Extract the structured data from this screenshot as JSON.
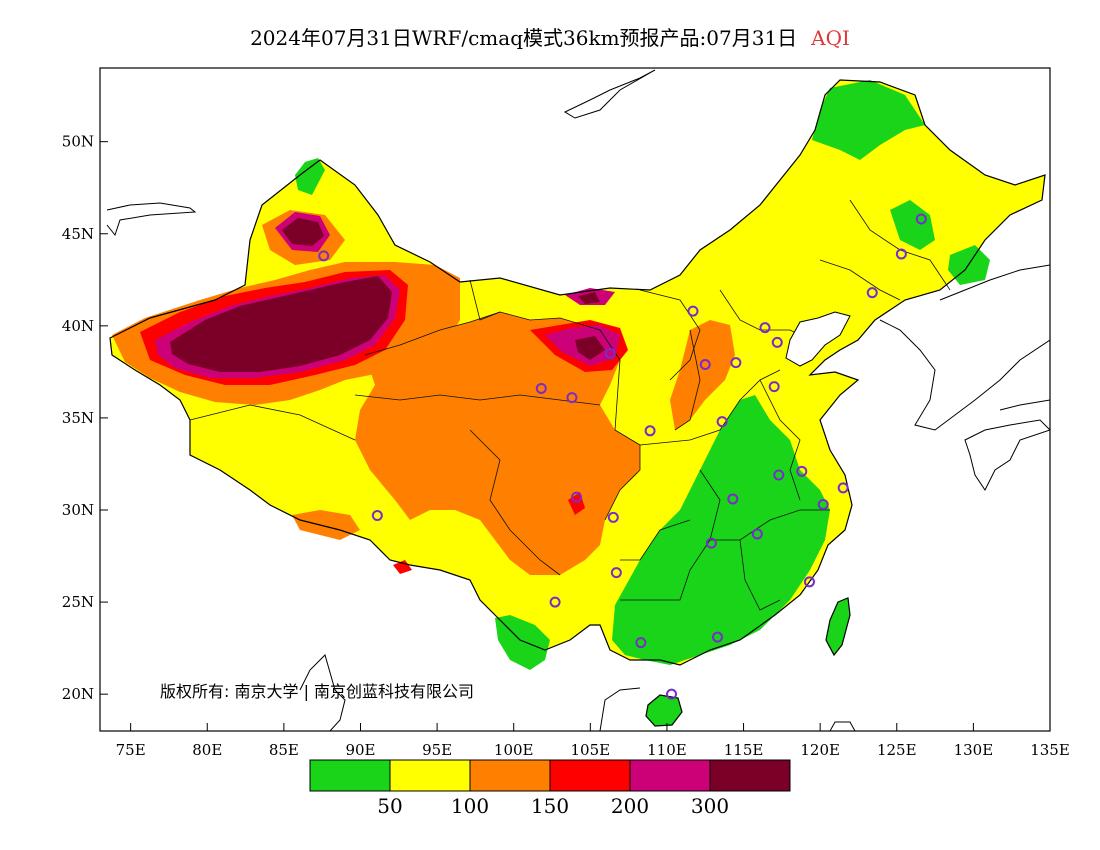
{
  "header": {
    "title": "2024年07月31日WRF/cmaq模式36km预报产品:07月31日",
    "variable": "AQI"
  },
  "map": {
    "lon_range": [
      73,
      135
    ],
    "lat_range": [
      18,
      54
    ],
    "x_ticks": [
      {
        "lon": 75,
        "label": "75E"
      },
      {
        "lon": 80,
        "label": "80E"
      },
      {
        "lon": 85,
        "label": "85E"
      },
      {
        "lon": 90,
        "label": "90E"
      },
      {
        "lon": 95,
        "label": "95E"
      },
      {
        "lon": 100,
        "label": "100E"
      },
      {
        "lon": 105,
        "label": "105E"
      },
      {
        "lon": 110,
        "label": "110E"
      },
      {
        "lon": 115,
        "label": "115E"
      },
      {
        "lon": 120,
        "label": "120E"
      },
      {
        "lon": 125,
        "label": "125E"
      },
      {
        "lon": 130,
        "label": "130E"
      },
      {
        "lon": 135,
        "label": "135E"
      }
    ],
    "y_ticks": [
      {
        "lat": 20,
        "label": "20N"
      },
      {
        "lat": 25,
        "label": "25N"
      },
      {
        "lat": 30,
        "label": "30N"
      },
      {
        "lat": 35,
        "label": "35N"
      },
      {
        "lat": 40,
        "label": "40N"
      },
      {
        "lat": 45,
        "label": "45N"
      },
      {
        "lat": 50,
        "label": "50N"
      }
    ],
    "copyright": "版权所有: 南京大学 | 南京创蓝科技有限公司",
    "colors": {
      "good": "#19d419",
      "moderate": "#ffff00",
      "usg": "#ff8000",
      "unhealthy": "#ff0000",
      "very_unhealthy": "#cc0077",
      "hazardous": "#7a0027"
    },
    "stations": [
      [
        87.6,
        43.8
      ],
      [
        91.1,
        29.7
      ],
      [
        101.8,
        36.6
      ],
      [
        103.8,
        36.1
      ],
      [
        106.3,
        38.5
      ],
      [
        111.7,
        40.8
      ],
      [
        112.5,
        37.9
      ],
      [
        114.5,
        38.0
      ],
      [
        116.4,
        39.9
      ],
      [
        117.2,
        39.1
      ],
      [
        117.0,
        36.7
      ],
      [
        113.6,
        34.8
      ],
      [
        108.9,
        34.3
      ],
      [
        104.1,
        30.7
      ],
      [
        106.5,
        29.6
      ],
      [
        106.7,
        26.6
      ],
      [
        102.7,
        25.0
      ],
      [
        108.3,
        22.8
      ],
      [
        113.3,
        23.1
      ],
      [
        110.3,
        20.0
      ],
      [
        112.9,
        28.2
      ],
      [
        114.3,
        30.6
      ],
      [
        115.9,
        28.7
      ],
      [
        117.3,
        31.9
      ],
      [
        118.8,
        32.1
      ],
      [
        120.2,
        30.3
      ],
      [
        121.5,
        31.2
      ],
      [
        119.3,
        26.1
      ],
      [
        123.4,
        41.8
      ],
      [
        125.3,
        43.9
      ],
      [
        126.6,
        45.8
      ]
    ]
  },
  "legend": {
    "colors": [
      "#19d419",
      "#ffff00",
      "#ff8000",
      "#ff0000",
      "#cc0077",
      "#7a0027"
    ],
    "labels": [
      "50",
      "100",
      "150",
      "200",
      "300"
    ]
  }
}
